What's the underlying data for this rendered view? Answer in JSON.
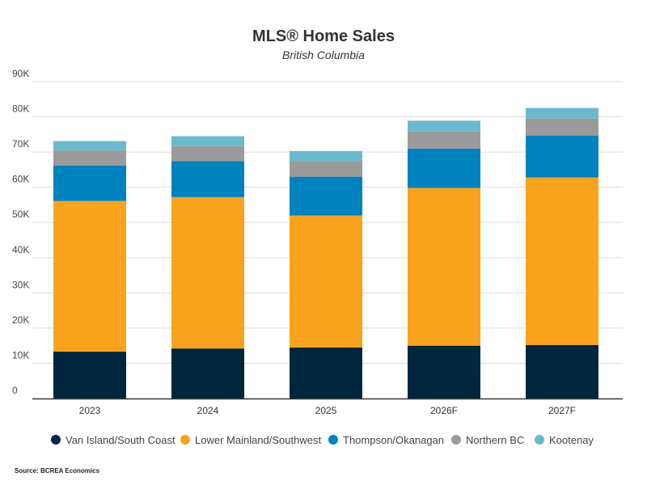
{
  "chart_data": {
    "type": "bar",
    "stacked": true,
    "title": "MLS® Home Sales",
    "subtitle": "British Columbia",
    "xlabel": "",
    "ylabel": "",
    "ylim": [
      0,
      90000
    ],
    "yticks": [
      0,
      10000,
      20000,
      30000,
      40000,
      50000,
      60000,
      70000,
      80000,
      90000
    ],
    "ytick_labels": [
      "0",
      "10K",
      "20K",
      "30K",
      "40K",
      "50K",
      "60K",
      "70K",
      "80K",
      "90K"
    ],
    "grid": true,
    "legend_position": "bottom",
    "categories": [
      "2023",
      "2024",
      "2025",
      "2026F",
      "2027F"
    ],
    "series": [
      {
        "name": "Van Island/South Coast",
        "color": "#00263e",
        "values": [
          13300,
          14200,
          14500,
          15000,
          15200
        ]
      },
      {
        "name": "Lower Mainland/Southwest",
        "color": "#f8a21d",
        "values": [
          42800,
          43000,
          37500,
          44800,
          47600
        ]
      },
      {
        "name": "Thompson/Okanagan",
        "color": "#0082be",
        "values": [
          10100,
          10200,
          11000,
          11200,
          11900
        ]
      },
      {
        "name": "Northern BC",
        "color": "#9b9b9b",
        "values": [
          4200,
          4300,
          4400,
          4800,
          4800
        ]
      },
      {
        "name": "Kootenay",
        "color": "#6ab9cc",
        "values": [
          2700,
          2800,
          2900,
          3100,
          3000
        ]
      }
    ],
    "source": "Source: BCREA Economics"
  }
}
